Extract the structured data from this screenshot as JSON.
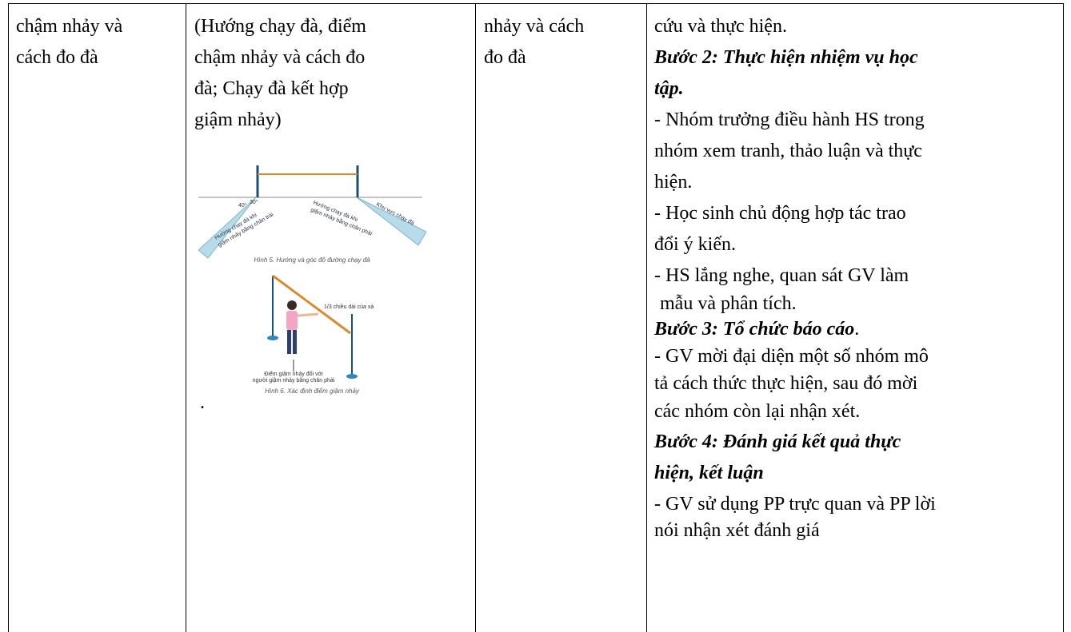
{
  "table": {
    "cells": [
      {
        "lines": [
          "chậm nhảy và",
          "cách đo đà"
        ]
      },
      {
        "lines": [
          "(Hướng chạy đà, điểm",
          "chậm nhảy và cách đo",
          "đà; Chạy đà kết hợp",
          "giậm nhảy)",
          "."
        ]
      },
      {
        "lines": [
          "nhảy và cách",
          "đo đà"
        ]
      },
      {
        "lines": [
          "cứu và thực hiện.",
          "Bước 2: Thực hiện nhiệm vụ học",
          "tập.",
          "- Nhóm trưởng điều hành HS trong",
          "nhóm xem tranh, thảo luận và thực",
          "hiện.",
          "- Học sinh chủ động hợp tác trao",
          "đổi ý kiến.",
          "- HS lắng nghe, quan sát GV làm",
          "mẫu và phân tích.",
          [
            "Bước 3: Tổ chức báo cáo",
            "."
          ],
          "- GV mời đại diện một số nhóm mô",
          "tả cách thức thực hiện, sau đó mời",
          "các nhóm còn lại nhận xét.",
          "Bước 4: Đánh giá kết quả thực",
          "hiện, kết luận",
          "- GV sử dụng PP trực quan và PP lời",
          "nói nhận xét đánh giá"
        ]
      }
    ]
  },
  "figure": {
    "angle_left": "40°",
    "angle_right": "30°",
    "left_label": [
      "Hướng chạy đà khi",
      "giậm nhảy bằng chân trái"
    ],
    "right_label": [
      "Hướng chạy đà khi",
      "giậm nhảy bằng chân phải"
    ],
    "zone_label": "Khu vực chạy đà",
    "caption5": "Hình 5. Hướng và góc độ đường chạy đà",
    "bar_label": "1/3 chiều dài của xà",
    "point_label": [
      "Điểm giậm nhảy đối với",
      "người giậm nhảy bằng chân phải"
    ],
    "caption6": "Hình 6. Xác định điểm giậm nhảy"
  }
}
